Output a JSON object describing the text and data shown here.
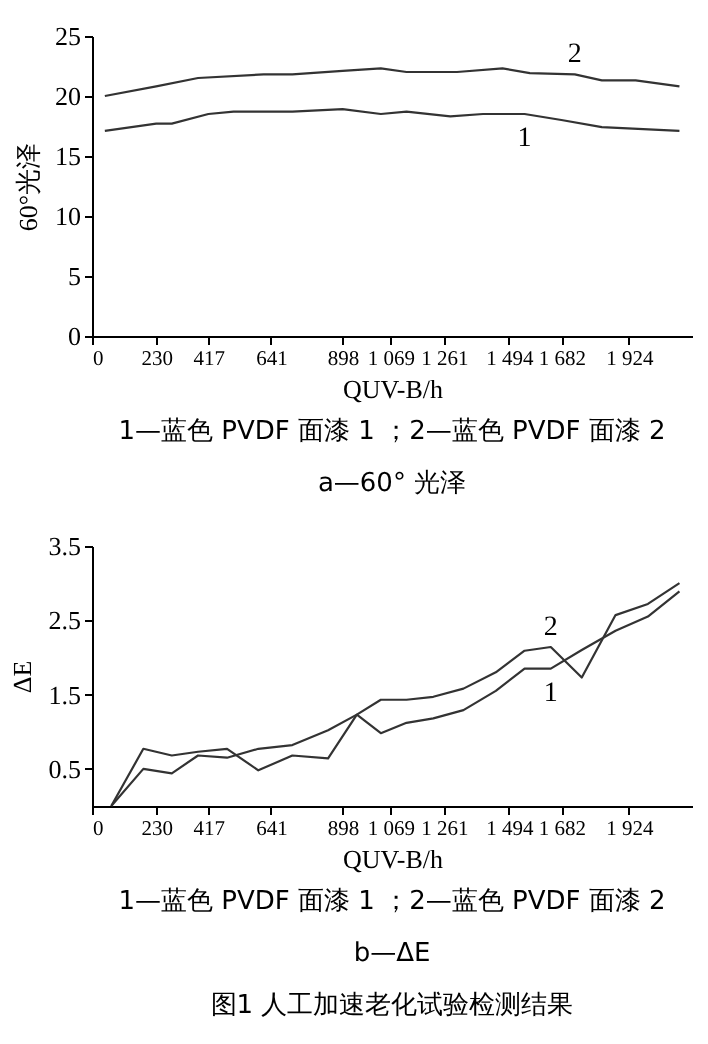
{
  "chart_data": [
    {
      "type": "line",
      "xlabel": "QUV-B/h",
      "ylabel": "60°光泽",
      "xlim": [
        0,
        2150
      ],
      "ylim": [
        0,
        25
      ],
      "xticks": [
        0,
        230,
        417,
        641,
        898,
        {
          "value": 1069,
          "label": "1 069"
        },
        {
          "value": 1261,
          "label": "1 261"
        },
        {
          "value": 1494,
          "label": "1 494"
        },
        {
          "value": 1682,
          "label": "1 682"
        },
        {
          "value": 1924,
          "label": "1 924"
        }
      ],
      "yticks": [
        0,
        5,
        10,
        15,
        20,
        25
      ],
      "series": [
        {
          "name": "1",
          "color": "#333333",
          "x": [
            46,
            230,
            286,
            417,
            507,
            718,
            898,
            1035,
            1127,
            1284,
            1401,
            1550,
            1682,
            1827,
            2105
          ],
          "values": [
            17.1,
            17.7,
            17.7,
            18.5,
            18.7,
            18.7,
            18.9,
            18.5,
            18.7,
            18.3,
            18.5,
            18.5,
            18.0,
            17.4,
            17.1
          ]
        },
        {
          "name": "2",
          "color": "#333333",
          "x": [
            46,
            230,
            380,
            615,
            718,
            898,
            1035,
            1127,
            1308,
            1471,
            1569,
            1730,
            1827,
            1948,
            2105
          ],
          "values": [
            20.0,
            20.8,
            21.5,
            21.8,
            21.8,
            22.1,
            22.3,
            22.0,
            22.0,
            22.3,
            21.9,
            21.8,
            21.3,
            21.3,
            20.8
          ]
        }
      ],
      "annotations": [
        "1—蓝色 PVDF 面漆 1 ；2—蓝色 PVDF 面漆 2",
        "a—60° 光泽"
      ]
    },
    {
      "type": "line",
      "xlabel": "QUV-B/h",
      "ylabel": "ΔE",
      "xlim": [
        0,
        2150
      ],
      "ylim": [
        0,
        3.5
      ],
      "xticks": [
        0,
        230,
        417,
        641,
        898,
        {
          "value": 1069,
          "label": "1 069"
        },
        {
          "value": 1261,
          "label": "1 261"
        },
        {
          "value": 1494,
          "label": "1 494"
        },
        {
          "value": 1682,
          "label": "1 682"
        },
        {
          "value": 1924,
          "label": "1 924"
        }
      ],
      "yticks": [
        0.5,
        1.5,
        2.5,
        3.5
      ],
      "series": [
        {
          "name": "1",
          "color": "#333333",
          "x": [
            69,
            184,
            286,
            380,
            484,
            596,
            718,
            846,
            949,
            1035,
            1127,
            1223,
            1331,
            1447,
            1550,
            1644,
            1755,
            1876,
            1992,
            2105
          ],
          "values": [
            0,
            0.77,
            0.68,
            0.73,
            0.77,
            0.48,
            0.68,
            0.64,
            1.23,
            0.98,
            1.12,
            1.18,
            1.29,
            1.55,
            1.85,
            1.85,
            2.1,
            2.36,
            2.55,
            2.89
          ]
        },
        {
          "name": "2",
          "color": "#333333",
          "x": [
            69,
            184,
            286,
            380,
            484,
            596,
            718,
            846,
            949,
            1035,
            1127,
            1223,
            1331,
            1447,
            1550,
            1644,
            1755,
            1876,
            1992,
            2105
          ],
          "values": [
            0,
            0.5,
            0.44,
            0.68,
            0.65,
            0.77,
            0.82,
            1.02,
            1.23,
            1.43,
            1.43,
            1.47,
            1.58,
            1.8,
            2.09,
            2.14,
            1.73,
            2.57,
            2.72,
            3.0
          ]
        }
      ],
      "annotations": [
        "1—蓝色 PVDF 面漆 1 ；2—蓝色 PVDF 面漆 2",
        "b—ΔE",
        "图1   人工加速老化试验检测结果"
      ]
    }
  ]
}
